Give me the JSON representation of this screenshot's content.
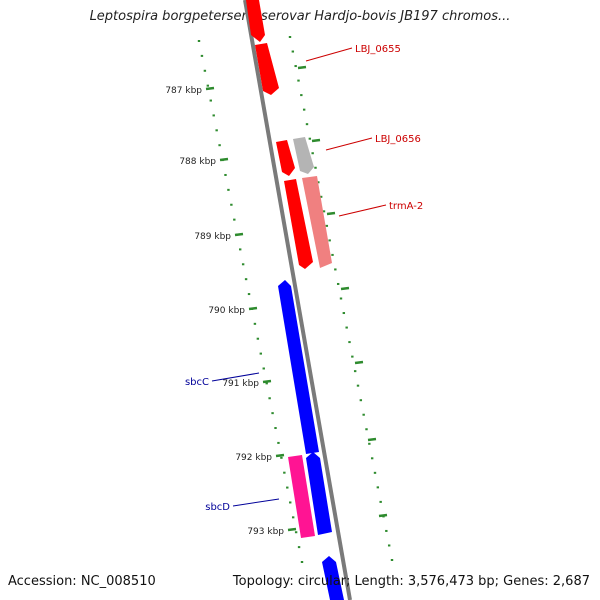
{
  "title": "Leptospira borgpetersenii serovar Hardjo-bovis JB197 chromos...",
  "footer": {
    "accession": "Accession: NC_008510",
    "summary": "Topology: circular; Length: 3,576,473 bp; Genes: 2,687"
  },
  "colors": {
    "backbone": "#7a7a7a",
    "tick": "#2e8b2e",
    "gene_red": "#ff0000",
    "gene_salmon": "#f08080",
    "gene_gray": "#b4b4b4",
    "gene_blue": "#0000ff",
    "gene_pink": "#ff1493",
    "label_red": "#cc0000",
    "label_blue": "#000099"
  },
  "tick_labels": [
    "787 kbp",
    "788 kbp",
    "789 kbp",
    "790 kbp",
    "791 kbp",
    "792 kbp",
    "793 kbp"
  ],
  "gene_labels": [
    {
      "text": "LBJ_0655",
      "strand": "forward"
    },
    {
      "text": "LBJ_0656",
      "strand": "forward"
    },
    {
      "text": "trmA-2",
      "strand": "forward"
    },
    {
      "text": "sbcC",
      "strand": "reverse"
    },
    {
      "text": "sbcD",
      "strand": "reverse"
    }
  ]
}
